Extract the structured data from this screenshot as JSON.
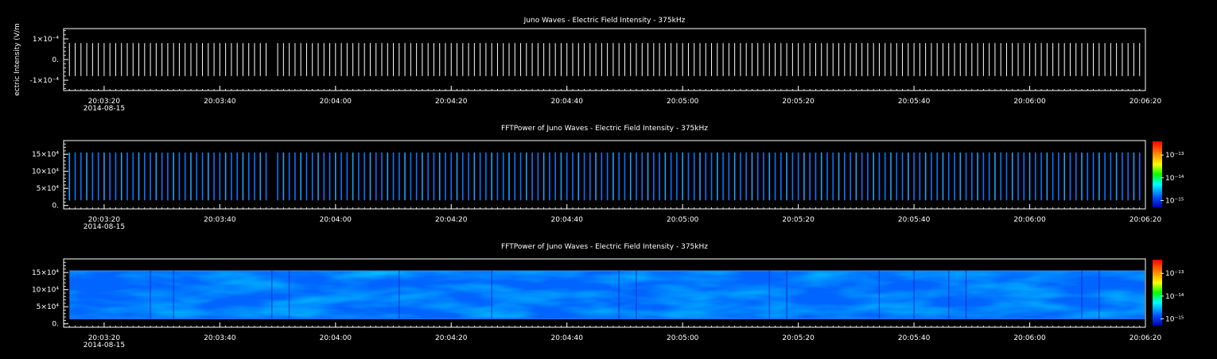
{
  "chart_data": [
    {
      "type": "line",
      "title": "Juno Waves - Electric Field Intensity - 375kHz",
      "ylabel": "ectric Intensity (V/m",
      "ylim": [
        -0.00015,
        0.00015
      ],
      "y_ticks": [
        {
          "value": 0.0001,
          "label": "1×10⁻⁴"
        },
        {
          "value": 0,
          "label": "0."
        },
        {
          "value": -0.0001,
          "label": "-1×10⁻⁴"
        }
      ],
      "xlim": [
        "2014-08-15T20:03:13",
        "2014-08-15T20:06:20"
      ],
      "x_ticks": [
        "20:03:20",
        "20:03:40",
        "20:04:00",
        "20:04:20",
        "20:04:40",
        "20:05:00",
        "20:05:20",
        "20:05:40",
        "20:06:00",
        "20:06:20"
      ],
      "date_label": "2014-08-15",
      "burst_period_s": 1,
      "burst_amplitude": 8e-05,
      "grid": false
    },
    {
      "type": "heatmap",
      "title": "FFTPower of Juno Waves - Electric Field Intensity - 375kHz",
      "ylim": [
        -10000,
        190000
      ],
      "y_ticks": [
        {
          "value": 150000,
          "label": "15×10⁴"
        },
        {
          "value": 100000,
          "label": "10×10⁴"
        },
        {
          "value": 50000,
          "label": "5×10⁴"
        },
        {
          "value": 0,
          "label": "0."
        }
      ],
      "freq_band": [
        15000,
        155000
      ],
      "xlim": [
        "2014-08-15T20:03:13",
        "2014-08-15T20:06:20"
      ],
      "x_ticks": [
        "20:03:20",
        "20:03:40",
        "20:04:00",
        "20:04:20",
        "20:04:40",
        "20:05:00",
        "20:05:20",
        "20:05:40",
        "20:06:00",
        "20:06:20"
      ],
      "date_label": "2014-08-15",
      "colorbar": {
        "scale": "log",
        "range": [
          5e-16,
          4e-13
        ],
        "tick_labels": [
          "10⁻¹³",
          "10⁻¹⁴",
          "10⁻¹⁵"
        ],
        "colors": [
          "#0000b4",
          "#0050ff",
          "#00ffff",
          "#00ff00",
          "#ffff00",
          "#ff8000",
          "#ff0000"
        ]
      },
      "rendering": "stripes"
    },
    {
      "type": "heatmap",
      "title": "FFTPower of Juno Waves - Electric Field Intensity - 375kHz",
      "ylim": [
        -10000,
        190000
      ],
      "y_ticks": [
        {
          "value": 150000,
          "label": "15×10⁴"
        },
        {
          "value": 100000,
          "label": "10×10⁴"
        },
        {
          "value": 50000,
          "label": "5×10⁴"
        },
        {
          "value": 0,
          "label": "0."
        }
      ],
      "freq_band": [
        15000,
        155000
      ],
      "xlim": [
        "2014-08-15T20:03:13",
        "2014-08-15T20:06:20"
      ],
      "x_ticks": [
        "20:03:20",
        "20:03:40",
        "20:04:00",
        "20:04:20",
        "20:04:40",
        "20:05:00",
        "20:05:20",
        "20:05:40",
        "20:06:00",
        "20:06:20"
      ],
      "date_label": "2014-08-15",
      "colorbar": {
        "scale": "log",
        "range": [
          5e-16,
          4e-13
        ],
        "tick_labels": [
          "10⁻¹³",
          "10⁻¹⁴",
          "10⁻¹⁵"
        ],
        "colors": [
          "#0000b4",
          "#0050ff",
          "#00ffff",
          "#00ff00",
          "#ffff00",
          "#ff8000",
          "#ff0000"
        ]
      },
      "rendering": "continuous"
    }
  ]
}
